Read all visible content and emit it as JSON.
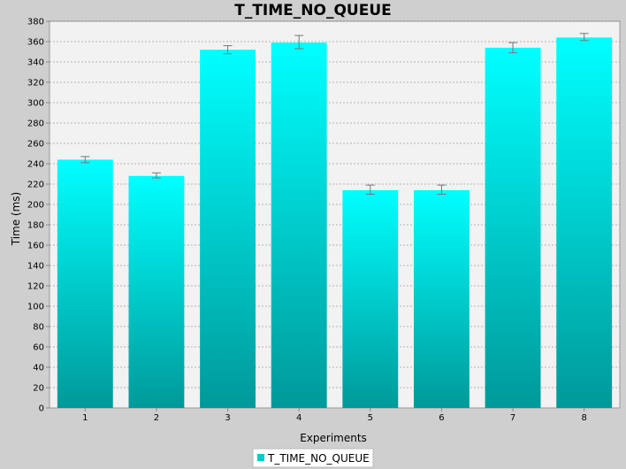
{
  "chart_data": {
    "type": "bar",
    "title": "T_TIME_NO_QUEUE",
    "xlabel": "Experiments",
    "ylabel": "Time (ms)",
    "categories": [
      "1",
      "2",
      "3",
      "4",
      "5",
      "6",
      "7",
      "8"
    ],
    "series": [
      {
        "name": "T_TIME_NO_QUEUE",
        "values": [
          244,
          228,
          352,
          359,
          214,
          214,
          354,
          364
        ],
        "error_low": [
          241,
          226,
          348,
          353,
          210,
          210,
          349,
          361
        ],
        "error_high": [
          247,
          231,
          356,
          366,
          219,
          219,
          359,
          368
        ]
      }
    ],
    "ylim": [
      0,
      380
    ],
    "yticks": [
      0,
      20,
      40,
      60,
      80,
      100,
      120,
      140,
      160,
      180,
      200,
      220,
      240,
      260,
      280,
      300,
      320,
      340,
      360,
      380
    ],
    "grid": true,
    "legend": "bottom",
    "colors": {
      "bar_top": "#00ffff",
      "bar_bottom": "#009999",
      "plot_bg": "#f2f2f2",
      "page_bg": "#cfcfcf",
      "grid": "#777777",
      "error_bar": "#777777"
    }
  }
}
